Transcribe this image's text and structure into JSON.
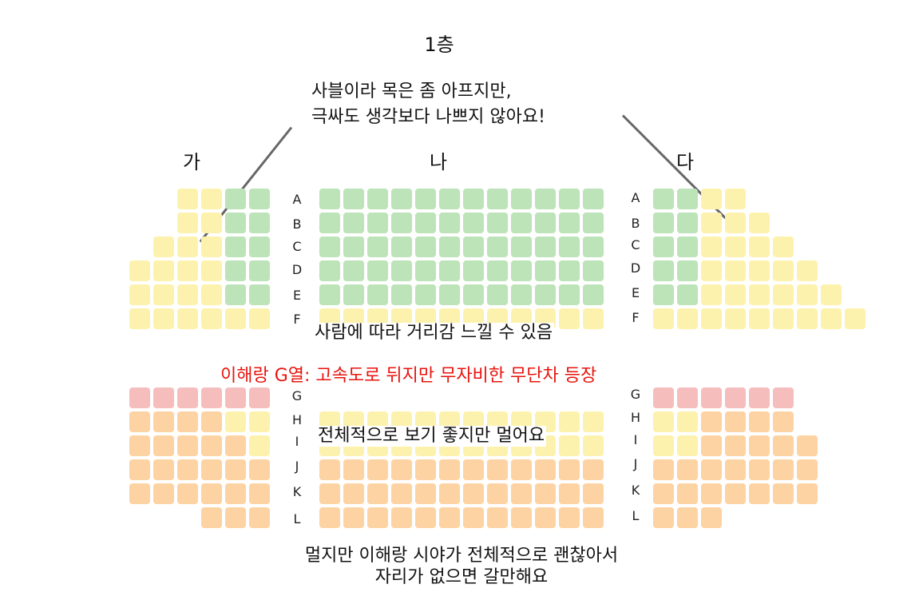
{
  "floor_title": "1층",
  "sections": {
    "left": "가",
    "center": "나",
    "right": "다"
  },
  "rows_upper": [
    "A",
    "B",
    "C",
    "D",
    "E",
    "F"
  ],
  "rows_lower": [
    "G",
    "H",
    "I",
    "J",
    "K",
    "L"
  ],
  "notes": {
    "top_line1": "사블이라 목은 좀 아프지만,",
    "top_line2": "극싸도 생각보다 나쁘지 않아요!",
    "middle": "사람에 따라 거리감 느낄 수 있음",
    "g_row": "이해랑 G열: 고속도로 뒤지만 무자비한 무단차 등장",
    "lower_center": "전체적으로 보기 좋지만 멀어요",
    "bottom_line1": "멀지만 이해랑 시야가 전체적으로 괜찮아서",
    "bottom_line2": "자리가 없으면 갈만해요"
  },
  "colors": {
    "green": "#bde3b8",
    "yellow": "#fdf2ad",
    "red": "#f6bdbd",
    "orange": "#fdd3a3",
    "note_red": "#e8140e",
    "pointer": "#666666"
  },
  "seat_map": {
    "left": {
      "A": "..YYGG",
      "B": "..YYGG",
      "C": ".YYYGG",
      "D": "YYYYGG",
      "E": "YYYYGG",
      "F": "YYYYYY"
    },
    "center": {
      "A": "GGGGGGGGGGGG",
      "B": "GGGGGGGGGGGG",
      "C": "GGGGGGGGGGGG",
      "D": "GGGGGGGGGGGG",
      "E": "GGGGGGGGGGGG",
      "F": "YYYYYYYYYYYY"
    },
    "right": {
      "A": "GGYY..",
      "B": "GGYYY.",
      "C": "GGYYYY",
      "D": "GGYYYYY",
      "E": "GGYYYYYY",
      "F": "YYYYYYYYY"
    },
    "left_lower": {
      "G": "RRRRRR",
      "H": "OOOOYY",
      "I": "OOOOOY",
      "J": "OOOOOO",
      "K": "OOOOOO",
      "L": "...OOO"
    },
    "center_lower": {
      "H": "YYYYYYYYYYYY",
      "I": "YYYYYYYYYYYY",
      "J": "OOOOOOOOOOOO",
      "K": "OOOOOOOOOOOO",
      "L": "OOOOOOOOOOOO"
    },
    "right_lower": {
      "G": "RRRRRR",
      "H": "YYOOOO",
      "I": "YYOOOOO",
      "J": "OOOOOOO",
      "K": "OOOOOOO",
      "L": "OOO"
    }
  }
}
